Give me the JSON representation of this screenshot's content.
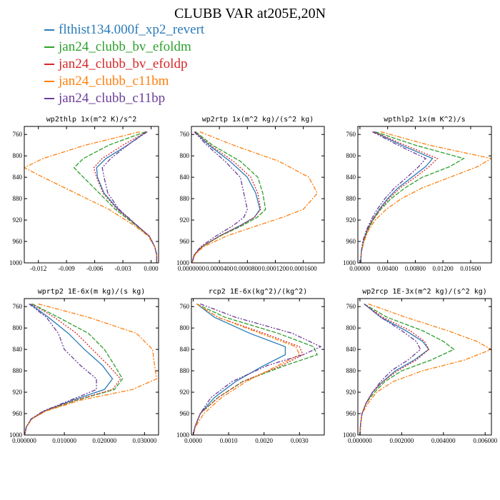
{
  "title": "CLUBB VAR at205E,20N",
  "series": [
    {
      "name": "flthist134.000f_xp2_revert",
      "color": "#2b7bb9",
      "dash": ""
    },
    {
      "name": "jan24_clubb_bv_efoldm",
      "color": "#2ca02c",
      "dash": "6,2"
    },
    {
      "name": "jan24_clubb_bv_efoldp",
      "color": "#d62728",
      "dash": "2,2"
    },
    {
      "name": "jan24_clubb_c11bm",
      "color": "#ff7f0e",
      "dash": "6,2,2,2"
    },
    {
      "name": "jan24_clubb_c11bp",
      "color": "#6a3d9a",
      "dash": "6,2,2,2,2,2"
    }
  ],
  "chart_data": [
    {
      "type": "line",
      "title": "wp2thlp  1x(m^2 K)/s^2",
      "xlim": [
        -0.0135,
        0.0008
      ],
      "ylim": [
        1000,
        745
      ],
      "yticks": [
        760,
        800,
        840,
        880,
        920,
        960,
        1000
      ],
      "xticks": [
        -0.012,
        -0.009,
        -0.006,
        -0.003,
        0.0
      ],
      "xticklabels": [
        "-0.012",
        "-0.009",
        "-0.006",
        "-0.003",
        "0.000"
      ],
      "y": [
        755,
        780,
        805,
        822,
        840,
        870,
        900,
        930,
        950,
        970,
        985,
        1000
      ],
      "series": [
        {
          "name": "flthist134.000f_xp2_revert",
          "values": [
            -0.0005,
            -0.0025,
            -0.0048,
            -0.0058,
            -0.0057,
            -0.005,
            -0.0035,
            -0.0015,
            -0.0002,
            0.0004,
            0.0006,
            0.0006
          ]
        },
        {
          "name": "jan24_clubb_bv_efoldm",
          "values": [
            -0.0006,
            -0.0045,
            -0.0072,
            -0.0082,
            -0.0072,
            -0.0055,
            -0.0038,
            -0.0016,
            -0.0002,
            0.0004,
            0.0006,
            0.0006
          ]
        },
        {
          "name": "jan24_clubb_bv_efoldp",
          "values": [
            -0.0005,
            -0.003,
            -0.0052,
            -0.0061,
            -0.0058,
            -0.0051,
            -0.0036,
            -0.0015,
            -0.0002,
            0.0004,
            0.0006,
            0.0006
          ]
        },
        {
          "name": "jan24_clubb_c11bm",
          "values": [
            -0.0012,
            -0.007,
            -0.0115,
            -0.0135,
            -0.0115,
            -0.008,
            -0.0045,
            -0.0018,
            -0.0003,
            0.0004,
            0.0006,
            0.0006
          ]
        },
        {
          "name": "jan24_clubb_c11bp",
          "values": [
            -0.0004,
            -0.0025,
            -0.0043,
            -0.0052,
            -0.005,
            -0.0046,
            -0.0034,
            -0.0015,
            -0.0002,
            0.0004,
            0.0006,
            0.0006
          ]
        }
      ]
    },
    {
      "type": "line",
      "title": "wp2rtp  1x(m^2 kg)/(s^2 kg)",
      "xlim": [
        0,
        0.00019
      ],
      "ylim": [
        1000,
        745
      ],
      "yticks": [
        760,
        800,
        840,
        880,
        920,
        960,
        1000
      ],
      "xticks": [
        0.0,
        4e-05,
        8e-05,
        0.00012,
        0.00016
      ],
      "xticklabels": [
        "0.0000000",
        "0.0000400",
        "0.0000800",
        "0.0001200",
        "0.0001600"
      ],
      "y": [
        755,
        780,
        810,
        840,
        870,
        900,
        915,
        930,
        950,
        970,
        985,
        1000
      ],
      "series": [
        {
          "name": "flthist134.000f_xp2_revert",
          "values": [
            5e-06,
            2.5e-05,
            5.5e-05,
            8e-05,
            9.2e-05,
            9.8e-05,
            9e-05,
            7e-05,
            4e-05,
            1.5e-05,
            4e-06,
            1e-06
          ]
        },
        {
          "name": "jan24_clubb_bv_efoldm",
          "values": [
            6e-06,
            3e-05,
            7e-05,
            9.5e-05,
            0.000102,
            0.000106,
            9.4e-05,
            7.3e-05,
            4.1e-05,
            1.5e-05,
            4e-06,
            1e-06
          ]
        },
        {
          "name": "jan24_clubb_bv_efoldp",
          "values": [
            5e-06,
            2.7e-05,
            6e-05,
            8.5e-05,
            9.5e-05,
            9.9e-05,
            9e-05,
            7.1e-05,
            4e-05,
            1.5e-05,
            4e-06,
            1e-06
          ]
        },
        {
          "name": "jan24_clubb_c11bm",
          "values": [
            1.2e-05,
            6e-05,
            0.000125,
            0.000168,
            0.00018,
            0.00016,
            0.00013,
            9.5e-05,
            5e-05,
            1.7e-05,
            5e-06,
            1e-06
          ]
        },
        {
          "name": "jan24_clubb_c11bp",
          "values": [
            4e-06,
            2.2e-05,
            4.8e-05,
            7e-05,
            7.5e-05,
            8e-05,
            7.5e-05,
            6e-05,
            3.5e-05,
            1.3e-05,
            4e-06,
            1e-06
          ]
        }
      ]
    },
    {
      "type": "line",
      "title": "wpthlp2  1x(m K^2)/s",
      "xlim": [
        -0.0003,
        0.019
      ],
      "ylim": [
        1000,
        745
      ],
      "yticks": [
        760,
        800,
        840,
        880,
        920,
        960,
        1000
      ],
      "xticks": [
        0.0,
        0.004,
        0.008,
        0.012,
        0.016
      ],
      "xticklabels": [
        "0.00000",
        "0.00400",
        "0.00800",
        "0.01200",
        "0.01600"
      ],
      "y": [
        755,
        780,
        805,
        820,
        840,
        860,
        880,
        900,
        920,
        940,
        960,
        980,
        1000
      ],
      "series": [
        {
          "name": "flthist134.000f_xp2_revert",
          "values": [
            0.002,
            0.006,
            0.0105,
            0.0095,
            0.0075,
            0.0055,
            0.004,
            0.0028,
            0.0018,
            0.001,
            0.0005,
            0.0002,
            0.0001
          ]
        },
        {
          "name": "jan24_clubb_bv_efoldm",
          "values": [
            0.0022,
            0.008,
            0.015,
            0.013,
            0.009,
            0.0065,
            0.0045,
            0.003,
            0.0019,
            0.0011,
            0.0005,
            0.0002,
            0.0001
          ]
        },
        {
          "name": "jan24_clubb_bv_efoldp",
          "values": [
            0.002,
            0.0065,
            0.0112,
            0.01,
            0.008,
            0.0058,
            0.0042,
            0.0029,
            0.0018,
            0.001,
            0.0005,
            0.0002,
            0.0001
          ]
        },
        {
          "name": "jan24_clubb_c11bm",
          "values": [
            0.003,
            0.01,
            0.019,
            0.017,
            0.013,
            0.009,
            0.006,
            0.0038,
            0.0022,
            0.0012,
            0.0006,
            0.0002,
            0.0001
          ]
        },
        {
          "name": "jan24_clubb_c11bp",
          "values": [
            0.0018,
            0.0055,
            0.0095,
            0.0085,
            0.0068,
            0.005,
            0.0036,
            0.0025,
            0.0016,
            0.0009,
            0.0004,
            0.0002,
            0.0001
          ]
        }
      ]
    },
    {
      "type": "line",
      "title": "wprtp2  1E-6x(m kg)/(s kg)",
      "xlim": [
        0,
        0.0335
      ],
      "ylim": [
        1000,
        745
      ],
      "yticks": [
        760,
        800,
        840,
        880,
        920,
        960,
        1000
      ],
      "xticks": [
        0.0,
        0.01,
        0.02,
        0.03
      ],
      "xticklabels": [
        "0.000000",
        "0.010000",
        "0.020000",
        "0.030000"
      ],
      "y": [
        755,
        780,
        810,
        840,
        870,
        895,
        915,
        935,
        955,
        970,
        985,
        1000
      ],
      "series": [
        {
          "name": "flthist134.000f_xp2_revert",
          "values": [
            0.0015,
            0.006,
            0.011,
            0.015,
            0.0195,
            0.022,
            0.02,
            0.012,
            0.005,
            0.0018,
            0.0005,
            0.0001
          ]
        },
        {
          "name": "jan24_clubb_bv_efoldm",
          "values": [
            0.002,
            0.0085,
            0.016,
            0.02,
            0.0225,
            0.0245,
            0.0225,
            0.013,
            0.0052,
            0.0018,
            0.0005,
            0.0001
          ]
        },
        {
          "name": "jan24_clubb_bv_efoldp",
          "values": [
            0.0018,
            0.0075,
            0.013,
            0.017,
            0.021,
            0.024,
            0.022,
            0.0128,
            0.0051,
            0.0018,
            0.0005,
            0.0001
          ]
        },
        {
          "name": "jan24_clubb_c11bm",
          "values": [
            0.0035,
            0.016,
            0.028,
            0.032,
            0.0325,
            0.033,
            0.027,
            0.014,
            0.0055,
            0.0019,
            0.0005,
            0.0001
          ]
        },
        {
          "name": "jan24_clubb_c11bp",
          "values": [
            0.0012,
            0.0055,
            0.0085,
            0.01,
            0.014,
            0.018,
            0.018,
            0.0115,
            0.0048,
            0.0017,
            0.0005,
            0.0001
          ]
        }
      ]
    },
    {
      "type": "line",
      "title": "rcp2  1E-6x(kg^2)/(kg^2)",
      "xlim": [
        -5e-05,
        0.0037
      ],
      "ylim": [
        1000,
        745
      ],
      "yticks": [
        760,
        800,
        840,
        880,
        920,
        960,
        1000
      ],
      "xticks": [
        0.0,
        0.001,
        0.002,
        0.003
      ],
      "xticklabels": [
        "0.0000",
        "0.0010",
        "0.0020",
        "0.0030"
      ],
      "y": [
        755,
        780,
        810,
        835,
        850,
        870,
        900,
        930,
        960,
        985,
        1000
      ],
      "series": [
        {
          "name": "flthist134.000f_xp2_revert",
          "values": [
            0.0001,
            0.0006,
            0.0016,
            0.0026,
            0.0026,
            0.002,
            0.0012,
            0.0006,
            0.0002,
            5e-05,
            0.0
          ]
        },
        {
          "name": "jan24_clubb_bv_efoldm",
          "values": [
            0.0001,
            0.0009,
            0.0024,
            0.0034,
            0.0035,
            0.0026,
            0.0014,
            0.0007,
            0.0002,
            5e-05,
            0.0
          ]
        },
        {
          "name": "jan24_clubb_bv_efoldp",
          "values": [
            0.0001,
            0.0007,
            0.002,
            0.003,
            0.0031,
            0.0025,
            0.0014,
            0.0007,
            0.0002,
            5e-05,
            0.0
          ]
        },
        {
          "name": "jan24_clubb_c11bm",
          "values": [
            0.0001,
            0.0007,
            0.0019,
            0.0029,
            0.003,
            0.0024,
            0.0015,
            0.0008,
            0.0003,
            6e-05,
            0.0
          ]
        },
        {
          "name": "jan24_clubb_c11bp",
          "values": [
            0.0002,
            0.0012,
            0.0028,
            0.0036,
            0.0031,
            0.0021,
            0.0011,
            0.0005,
            0.0002,
            4e-05,
            0.0
          ]
        }
      ]
    },
    {
      "type": "line",
      "title": "wp2rcp  1E-3x(m^2 kg)/(s^2 kg)",
      "xlim": [
        -0.0001,
        0.0063
      ],
      "ylim": [
        1000,
        745
      ],
      "yticks": [
        760,
        800,
        840,
        880,
        920,
        960,
        1000
      ],
      "xticks": [
        0.0,
        0.002,
        0.004,
        0.006
      ],
      "xticklabels": [
        "0.000000",
        "0.002000",
        "0.004000",
        "0.006000"
      ],
      "y": [
        755,
        780,
        805,
        825,
        840,
        860,
        880,
        900,
        920,
        940,
        960,
        980,
        1000
      ],
      "series": [
        {
          "name": "flthist134.000f_xp2_revert",
          "values": [
            0.0002,
            0.001,
            0.0022,
            0.003,
            0.0033,
            0.0026,
            0.0017,
            0.0011,
            0.0006,
            0.0003,
            0.0001,
            3e-05,
            0.0
          ]
        },
        {
          "name": "jan24_clubb_bv_efoldm",
          "values": [
            0.0002,
            0.0013,
            0.003,
            0.004,
            0.0045,
            0.0034,
            0.002,
            0.0012,
            0.0007,
            0.0003,
            0.0001,
            3e-05,
            0.0
          ]
        },
        {
          "name": "jan24_clubb_bv_efoldp",
          "values": [
            0.0002,
            0.0011,
            0.0024,
            0.0031,
            0.0033,
            0.0027,
            0.0018,
            0.0011,
            0.0006,
            0.0003,
            0.0001,
            3e-05,
            0.0
          ]
        },
        {
          "name": "jan24_clubb_c11bm",
          "values": [
            0.0004,
            0.0022,
            0.0042,
            0.0056,
            0.0063,
            0.005,
            0.003,
            0.0016,
            0.0008,
            0.0004,
            0.0001,
            3e-05,
            0.0
          ]
        },
        {
          "name": "jan24_clubb_c11bp",
          "values": [
            0.0002,
            0.001,
            0.002,
            0.0027,
            0.0029,
            0.0023,
            0.0015,
            0.001,
            0.0006,
            0.0003,
            0.0001,
            3e-05,
            0.0
          ]
        }
      ]
    }
  ]
}
